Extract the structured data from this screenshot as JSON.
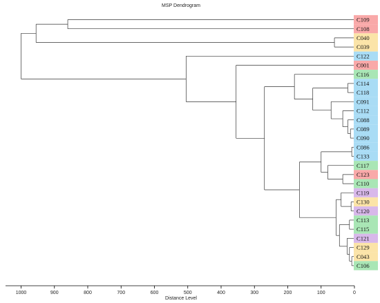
{
  "chart_data": {
    "type": "dendrogram",
    "title": "MSP Dendrogram",
    "xlabel": "Distance Level",
    "xlim": [
      1000,
      0
    ],
    "x_ticks": [
      1000,
      900,
      800,
      700,
      600,
      500,
      400,
      300,
      200,
      100,
      0
    ],
    "colors": {
      "red": "#f9a9a9",
      "yellow": "#fbe4a8",
      "blue": "#a9dcf5",
      "green": "#a9e6b5",
      "purple": "#d8b8ea"
    },
    "leaves": [
      {
        "label": "C109",
        "color": "red"
      },
      {
        "label": "C108",
        "color": "red"
      },
      {
        "label": "C040",
        "color": "yellow"
      },
      {
        "label": "C039",
        "color": "yellow"
      },
      {
        "label": "C122",
        "color": "blue"
      },
      {
        "label": "C001",
        "color": "red"
      },
      {
        "label": "C116",
        "color": "green"
      },
      {
        "label": "C114",
        "color": "blue"
      },
      {
        "label": "C118",
        "color": "blue"
      },
      {
        "label": "C091",
        "color": "blue"
      },
      {
        "label": "C112",
        "color": "blue"
      },
      {
        "label": "C088",
        "color": "blue"
      },
      {
        "label": "C089",
        "color": "blue"
      },
      {
        "label": "C090",
        "color": "blue"
      },
      {
        "label": "C086",
        "color": "blue"
      },
      {
        "label": "C133",
        "color": "blue"
      },
      {
        "label": "C117",
        "color": "green"
      },
      {
        "label": "C123",
        "color": "red"
      },
      {
        "label": "C110",
        "color": "green"
      },
      {
        "label": "C119",
        "color": "purple"
      },
      {
        "label": "C130",
        "color": "yellow"
      },
      {
        "label": "C120",
        "color": "purple"
      },
      {
        "label": "C113",
        "color": "green"
      },
      {
        "label": "C115",
        "color": "green"
      },
      {
        "label": "C121",
        "color": "purple"
      },
      {
        "label": "C129",
        "color": "yellow"
      },
      {
        "label": "C043",
        "color": "yellow"
      },
      {
        "label": "C106",
        "color": "green"
      }
    ],
    "merges": [
      {
        "id": "n1",
        "children": [
          "L0",
          "L1"
        ],
        "height": 860
      },
      {
        "id": "n2",
        "children": [
          "L2",
          "L3"
        ],
        "height": 60
      },
      {
        "id": "n3",
        "children": [
          "n1",
          "n2"
        ],
        "height": 955
      },
      {
        "id": "n4",
        "children": [
          "L7",
          "L8"
        ],
        "height": 20
      },
      {
        "id": "n5",
        "children": [
          "L12",
          "L13"
        ],
        "height": 12
      },
      {
        "id": "n6",
        "children": [
          "L11",
          "n5"
        ],
        "height": 20
      },
      {
        "id": "n7",
        "children": [
          "L10",
          "n6"
        ],
        "height": 35
      },
      {
        "id": "n8",
        "children": [
          "L9",
          "n7"
        ],
        "height": 70
      },
      {
        "id": "n9",
        "children": [
          "n4",
          "n8"
        ],
        "height": 125
      },
      {
        "id": "n10",
        "children": [
          "L6",
          "n9"
        ],
        "height": 180
      },
      {
        "id": "n11",
        "children": [
          "L17",
          "L18"
        ],
        "height": 35
      },
      {
        "id": "n12",
        "children": [
          "L16",
          "n11"
        ],
        "height": 80
      },
      {
        "id": "n13",
        "children": [
          "L14",
          "L15"
        ],
        "height": 8
      },
      {
        "id": "n14",
        "children": [
          "n12",
          "n13"
        ],
        "height": 100
      },
      {
        "id": "n15",
        "children": [
          "L20",
          "L21"
        ],
        "height": 10
      },
      {
        "id": "n16",
        "children": [
          "L19",
          "n15"
        ],
        "height": 40
      },
      {
        "id": "n17",
        "children": [
          "L22",
          "L23"
        ],
        "height": 15
      },
      {
        "id": "n18",
        "children": [
          "L26",
          "L27"
        ],
        "height": 8
      },
      {
        "id": "n19",
        "children": [
          "L25",
          "n18"
        ],
        "height": 15
      },
      {
        "id": "n20",
        "children": [
          "L24",
          "n19"
        ],
        "height": 22
      },
      {
        "id": "n21",
        "children": [
          "n17",
          "n20"
        ],
        "height": 45
      },
      {
        "id": "n22",
        "children": [
          "n16",
          "n21"
        ],
        "height": 55
      },
      {
        "id": "n23",
        "children": [
          "n14",
          "n22"
        ],
        "height": 165
      },
      {
        "id": "n24",
        "children": [
          "n10",
          "n23"
        ],
        "height": 270
      },
      {
        "id": "n25",
        "children": [
          "L5",
          "n24"
        ],
        "height": 355
      },
      {
        "id": "n26",
        "children": [
          "L4",
          "n25"
        ],
        "height": 505
      },
      {
        "id": "n27",
        "children": [
          "n3",
          "n26"
        ],
        "height": 1000
      }
    ]
  }
}
